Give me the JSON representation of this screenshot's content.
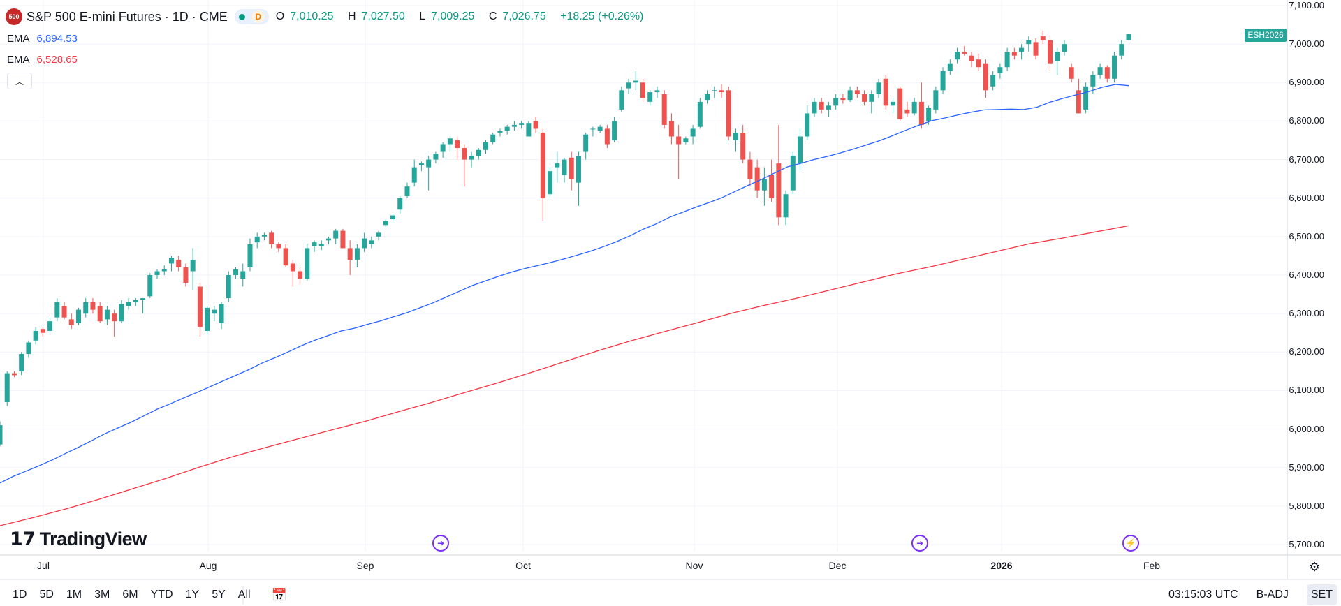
{
  "header": {
    "logo_text": "500",
    "title": "S&P 500 E-mini Futures · 1D · CME",
    "status_badge": "D",
    "open_label": "O",
    "open": "7,010.25",
    "high_label": "H",
    "high": "7,027.50",
    "low_label": "L",
    "low": "7,009.25",
    "close_label": "C",
    "close": "7,026.75",
    "change": "+18.25 (+0.26%)"
  },
  "indicators": [
    {
      "label": "EMA",
      "value": "6,894.53",
      "color": "#2962ff"
    },
    {
      "label": "EMA",
      "value": "6,528.65",
      "color": "#f23645"
    }
  ],
  "collapse_icon": "chevron-up-icon",
  "symbol_tag": "ESH2026",
  "price_axis": [
    "7,100.00",
    "7,000.00",
    "6,900.00",
    "6,800.00",
    "6,700.00",
    "6,600.00",
    "6,500.00",
    "6,400.00",
    "6,300.00",
    "6,200.00",
    "6,100.00",
    "6,000.00",
    "5,900.00",
    "5,800.00",
    "5,700.00"
  ],
  "time_axis": [
    {
      "label": "Jul",
      "bold": false
    },
    {
      "label": "Aug",
      "bold": false
    },
    {
      "label": "Sep",
      "bold": false
    },
    {
      "label": "Oct",
      "bold": false
    },
    {
      "label": "Nov",
      "bold": false
    },
    {
      "label": "Dec",
      "bold": false
    },
    {
      "label": "2026",
      "bold": true
    },
    {
      "label": "Feb",
      "bold": false
    }
  ],
  "branding": "TradingView",
  "event_icons": [
    "event-arrow-icon",
    "event-arrow-icon",
    "lightning-icon"
  ],
  "bottom_bar": {
    "ranges": [
      "1D",
      "5D",
      "1M",
      "3M",
      "6M",
      "YTD",
      "1Y",
      "5Y",
      "All"
    ],
    "calendar_icon": "goto-date-icon",
    "time": "03:15:03 UTC",
    "adjust": "B-ADJ",
    "session": "SET"
  },
  "colors": {
    "up": "#26a69a",
    "down": "#ef5350",
    "ema_fast": "#2962ff",
    "ema_slow": "#f23645"
  },
  "chart_data": {
    "type": "candlestick",
    "ylim": [
      5680,
      7110
    ],
    "series": [
      {
        "name": "S&P 500 E-mini Futures",
        "candles": [
          [
            5960,
            6020,
            5955,
            6010
          ],
          [
            6070,
            6150,
            6060,
            6145
          ],
          [
            6145,
            6150,
            6135,
            6140
          ],
          [
            6150,
            6200,
            6140,
            6195
          ],
          [
            6195,
            6230,
            6185,
            6225
          ],
          [
            6230,
            6265,
            6220,
            6255
          ],
          [
            6260,
            6265,
            6240,
            6250
          ],
          [
            6255,
            6290,
            6245,
            6280
          ],
          [
            6290,
            6340,
            6280,
            6330
          ],
          [
            6320,
            6330,
            6285,
            6290
          ],
          [
            6285,
            6300,
            6260,
            6270
          ],
          [
            6275,
            6315,
            6270,
            6310
          ],
          [
            6300,
            6340,
            6290,
            6330
          ],
          [
            6330,
            6340,
            6300,
            6310
          ],
          [
            6320,
            6330,
            6275,
            6280
          ],
          [
            6285,
            6320,
            6270,
            6310
          ],
          [
            6300,
            6310,
            6240,
            6280
          ],
          [
            6280,
            6335,
            6275,
            6325
          ],
          [
            6320,
            6340,
            6310,
            6330
          ],
          [
            6330,
            6340,
            6320,
            6335
          ],
          [
            6335,
            6340,
            6300,
            6340
          ],
          [
            6345,
            6405,
            6340,
            6400
          ],
          [
            6400,
            6415,
            6390,
            6410
          ],
          [
            6410,
            6425,
            6400,
            6415
          ],
          [
            6430,
            6450,
            6410,
            6445
          ],
          [
            6440,
            6450,
            6410,
            6420
          ],
          [
            6420,
            6430,
            6370,
            6380
          ],
          [
            6410,
            6470,
            6360,
            6440
          ],
          [
            6370,
            6380,
            6240,
            6265
          ],
          [
            6255,
            6320,
            6245,
            6315
          ],
          [
            6300,
            6320,
            6280,
            6310
          ],
          [
            6275,
            6330,
            6260,
            6325
          ],
          [
            6340,
            6410,
            6330,
            6400
          ],
          [
            6400,
            6420,
            6390,
            6415
          ],
          [
            6390,
            6430,
            6370,
            6410
          ],
          [
            6420,
            6495,
            6410,
            6480
          ],
          [
            6485,
            6510,
            6470,
            6500
          ],
          [
            6500,
            6510,
            6490,
            6505
          ],
          [
            6510,
            6515,
            6470,
            6480
          ],
          [
            6480,
            6485,
            6460,
            6470
          ],
          [
            6470,
            6480,
            6420,
            6425
          ],
          [
            6430,
            6440,
            6370,
            6410
          ],
          [
            6410,
            6420,
            6375,
            6390
          ],
          [
            6390,
            6480,
            6385,
            6470
          ],
          [
            6475,
            6490,
            6460,
            6485
          ],
          [
            6475,
            6490,
            6465,
            6480
          ],
          [
            6490,
            6500,
            6480,
            6495
          ],
          [
            6495,
            6520,
            6480,
            6515
          ],
          [
            6515,
            6520,
            6470,
            6470
          ],
          [
            6470,
            6490,
            6400,
            6440
          ],
          [
            6440,
            6480,
            6420,
            6470
          ],
          [
            6470,
            6510,
            6460,
            6495
          ],
          [
            6480,
            6500,
            6470,
            6490
          ],
          [
            6500,
            6515,
            6490,
            6510
          ],
          [
            6530,
            6545,
            6525,
            6540
          ],
          [
            6545,
            6560,
            6540,
            6555
          ],
          [
            6570,
            6605,
            6560,
            6600
          ],
          [
            6605,
            6640,
            6600,
            6630
          ],
          [
            6640,
            6700,
            6630,
            6680
          ],
          [
            6685,
            6695,
            6670,
            6690
          ],
          [
            6680,
            6710,
            6620,
            6700
          ],
          [
            6700,
            6720,
            6690,
            6715
          ],
          [
            6720,
            6745,
            6705,
            6740
          ],
          [
            6740,
            6760,
            6720,
            6755
          ],
          [
            6750,
            6760,
            6700,
            6730
          ],
          [
            6730,
            6740,
            6630,
            6700
          ],
          [
            6700,
            6720,
            6680,
            6710
          ],
          [
            6710,
            6730,
            6700,
            6725
          ],
          [
            6725,
            6750,
            6715,
            6745
          ],
          [
            6745,
            6770,
            6740,
            6765
          ],
          [
            6770,
            6780,
            6760,
            6775
          ],
          [
            6775,
            6790,
            6765,
            6785
          ],
          [
            6785,
            6800,
            6775,
            6790
          ],
          [
            6790,
            6800,
            6780,
            6795
          ],
          [
            6760,
            6800,
            6760,
            6795
          ],
          [
            6800,
            6810,
            6770,
            6780
          ],
          [
            6770,
            6780,
            6540,
            6600
          ],
          [
            6610,
            6680,
            6600,
            6670
          ],
          [
            6680,
            6720,
            6640,
            6690
          ],
          [
            6660,
            6705,
            6640,
            6700
          ],
          [
            6705,
            6720,
            6620,
            6650
          ],
          [
            6640,
            6720,
            6580,
            6710
          ],
          [
            6720,
            6770,
            6700,
            6765
          ],
          [
            6780,
            6785,
            6760,
            6780
          ],
          [
            6775,
            6790,
            6770,
            6785
          ],
          [
            6780,
            6790,
            6730,
            6740
          ],
          [
            6750,
            6810,
            6745,
            6800
          ],
          [
            6830,
            6890,
            6825,
            6880
          ],
          [
            6885,
            6910,
            6870,
            6900
          ],
          [
            6900,
            6930,
            6880,
            6905
          ],
          [
            6900,
            6910,
            6850,
            6860
          ],
          [
            6850,
            6880,
            6840,
            6875
          ],
          [
            6875,
            6890,
            6860,
            6880
          ],
          [
            6870,
            6880,
            6780,
            6790
          ],
          [
            6800,
            6820,
            6740,
            6760
          ],
          [
            6760,
            6790,
            6650,
            6740
          ],
          [
            6745,
            6760,
            6740,
            6755
          ],
          [
            6760,
            6790,
            6740,
            6780
          ],
          [
            6785,
            6860,
            6780,
            6850
          ],
          [
            6855,
            6880,
            6845,
            6870
          ],
          [
            6880,
            6890,
            6860,
            6880
          ],
          [
            6880,
            6895,
            6860,
            6875
          ],
          [
            6880,
            6890,
            6750,
            6760
          ],
          [
            6750,
            6780,
            6720,
            6770
          ],
          [
            6770,
            6790,
            6690,
            6700
          ],
          [
            6700,
            6720,
            6630,
            6650
          ],
          [
            6680,
            6700,
            6600,
            6620
          ],
          [
            6620,
            6680,
            6580,
            6650
          ],
          [
            6660,
            6700,
            6590,
            6600
          ],
          [
            6690,
            6790,
            6530,
            6550
          ],
          [
            6550,
            6620,
            6530,
            6610
          ],
          [
            6620,
            6720,
            6610,
            6710
          ],
          [
            6690,
            6780,
            6670,
            6760
          ],
          [
            6760,
            6840,
            6750,
            6820
          ],
          [
            6820,
            6860,
            6810,
            6850
          ],
          [
            6850,
            6860,
            6820,
            6830
          ],
          [
            6830,
            6850,
            6810,
            6840
          ],
          [
            6840,
            6870,
            6830,
            6860
          ],
          [
            6860,
            6870,
            6845,
            6855
          ],
          [
            6855,
            6890,
            6850,
            6880
          ],
          [
            6880,
            6890,
            6860,
            6870
          ],
          [
            6870,
            6880,
            6840,
            6850
          ],
          [
            6850,
            6880,
            6820,
            6870
          ],
          [
            6870,
            6910,
            6860,
            6900
          ],
          [
            6910,
            6920,
            6830,
            6840
          ],
          [
            6840,
            6860,
            6820,
            6850
          ],
          [
            6885,
            6890,
            6800,
            6805
          ],
          [
            6830,
            6850,
            6810,
            6820
          ],
          [
            6820,
            6860,
            6815,
            6850
          ],
          [
            6850,
            6900,
            6780,
            6790
          ],
          [
            6800,
            6840,
            6790,
            6835
          ],
          [
            6830,
            6890,
            6820,
            6880
          ],
          [
            6880,
            6940,
            6870,
            6930
          ],
          [
            6930,
            6960,
            6920,
            6950
          ],
          [
            6960,
            6990,
            6950,
            6980
          ],
          [
            6980,
            6995,
            6970,
            6975
          ],
          [
            6970,
            6980,
            6940,
            6955
          ],
          [
            6960,
            6975,
            6930,
            6940
          ],
          [
            6950,
            6960,
            6860,
            6880
          ],
          [
            6890,
            6930,
            6880,
            6920
          ],
          [
            6925,
            6950,
            6910,
            6940
          ],
          [
            6940,
            6990,
            6930,
            6980
          ],
          [
            6980,
            6990,
            6960,
            6970
          ],
          [
            6980,
            7000,
            6960,
            6990
          ],
          [
            7000,
            7020,
            6980,
            7010
          ],
          [
            7005,
            7015,
            6960,
            6970
          ],
          [
            7020,
            7035,
            7000,
            7010
          ],
          [
            7010,
            7020,
            6930,
            6950
          ],
          [
            6955,
            6990,
            6920,
            6980
          ],
          [
            6980,
            7010,
            6970,
            7000
          ],
          [
            6940,
            6950,
            6900,
            6910
          ],
          [
            6880,
            6910,
            6820,
            6820
          ],
          [
            6830,
            6900,
            6820,
            6890
          ],
          [
            6890,
            6930,
            6870,
            6920
          ],
          [
            6920,
            6950,
            6910,
            6940
          ],
          [
            6940,
            6945,
            6900,
            6910
          ],
          [
            6910,
            6980,
            6900,
            6970
          ],
          [
            6970,
            7010,
            6960,
            7000
          ],
          [
            7010.25,
            7027.5,
            7009.25,
            7026.75
          ]
        ]
      },
      {
        "name": "EMA",
        "values": [
          5860,
          5877,
          5891,
          5905,
          5920,
          5937,
          5953,
          5970,
          5988,
          6003,
          6018,
          6035,
          6052,
          6066,
          6081,
          6095,
          6110,
          6125,
          6140,
          6155,
          6172,
          6186,
          6201,
          6217,
          6231,
          6243,
          6255,
          6262,
          6272,
          6281,
          6292,
          6302,
          6315,
          6328,
          6343,
          6358,
          6373,
          6385,
          6397,
          6408,
          6417,
          6425,
          6433,
          6442,
          6452,
          6462,
          6474,
          6487,
          6502,
          6519,
          6533,
          6550,
          6563,
          6576,
          6588,
          6601,
          6617,
          6633,
          6648,
          6665,
          6681,
          6690,
          6700,
          6708,
          6717,
          6727,
          6738,
          6749,
          6762,
          6776,
          6789,
          6801,
          6808,
          6816,
          6823,
          6829,
          6830,
          6831,
          6830,
          6836,
          6849,
          6859,
          6868,
          6877,
          6888,
          6895,
          6892
        ],
        "x_start": 0,
        "x_step": 1.67
      },
      {
        "name": "EMA",
        "values": [
          5749,
          5770,
          5793,
          5818,
          5845,
          5872,
          5901,
          5928,
          5952,
          5975,
          5998,
          6020,
          6045,
          6069,
          6095,
          6120,
          6147,
          6175,
          6203,
          6229,
          6253,
          6276,
          6300,
          6321,
          6340,
          6361,
          6382,
          6403,
          6421,
          6441,
          6461,
          6481,
          6496,
          6512,
          6528
        ]
      }
    ]
  }
}
